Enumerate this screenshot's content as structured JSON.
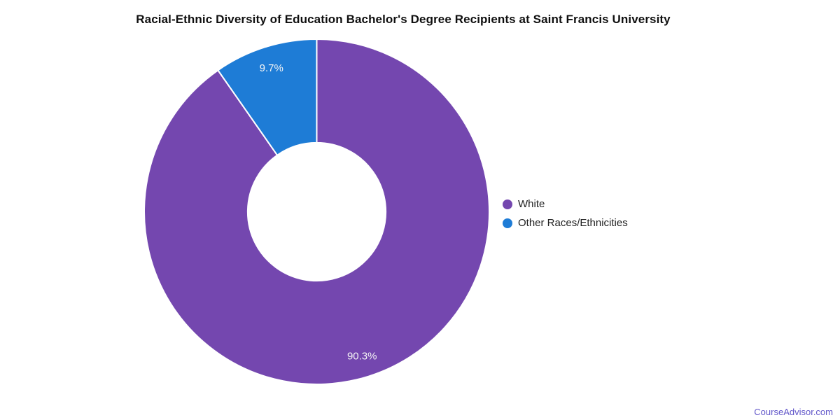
{
  "title": "Racial-Ethnic Diversity of Education Bachelor's Degree Recipients at Saint Francis University",
  "footer": {
    "text": "CourseAdvisor.com",
    "color": "#6156c9"
  },
  "chart_data": {
    "type": "pie",
    "style": "donut",
    "title": "Racial-Ethnic Diversity of Education Bachelor's Degree Recipients at Saint Francis University",
    "categories": [
      "White",
      "Other Races/Ethnicities"
    ],
    "values": [
      90.3,
      9.7
    ],
    "slices": [
      {
        "label": "White",
        "value": 90.3,
        "display": "90.3%",
        "color": "#7447af"
      },
      {
        "label": "Other Races/Ethnicities",
        "value": 9.7,
        "display": "9.7%",
        "color": "#1e7cd6"
      }
    ],
    "start_angle_deg": 0,
    "direction": "clockwise",
    "inner_radius_ratio": 0.4,
    "separator_color": "#ffffff",
    "slice_label_color": "#f5f5f5",
    "slice_label_radius_ratio": 0.875,
    "legend_position": "right",
    "grid": false
  }
}
